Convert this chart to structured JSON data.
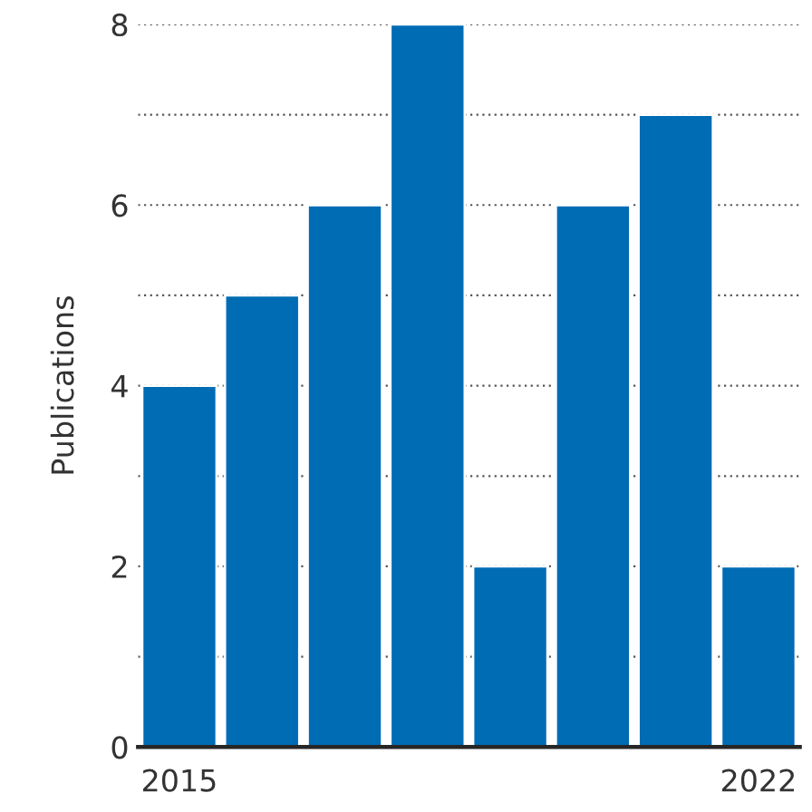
{
  "chart_data": {
    "type": "bar",
    "ylabel": "Publications",
    "categories": [
      "2015",
      null,
      null,
      null,
      null,
      null,
      null,
      "2022"
    ],
    "values": [
      4,
      5,
      6,
      8,
      2,
      6,
      7,
      2
    ],
    "color": "#006cb4",
    "ylim": [
      0,
      8
    ],
    "yticks": [
      0,
      {
        "value": 1,
        "label": null
      },
      2,
      {
        "value": 3,
        "label": null
      },
      4,
      {
        "value": 5,
        "label": null
      },
      6,
      {
        "value": 7,
        "label": null
      },
      8
    ],
    "grid": "y"
  }
}
